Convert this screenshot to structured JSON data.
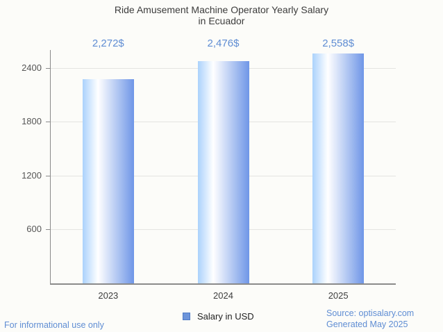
{
  "title": {
    "line1": "Ride Amusement Machine Operator Yearly Salary",
    "line2": "in Ecuador"
  },
  "chart_data": {
    "type": "bar",
    "title": "Ride Amusement Machine Operator Yearly Salary in Ecuador",
    "categories": [
      "2023",
      "2024",
      "2025"
    ],
    "series": [
      {
        "name": "Salary in USD",
        "values": [
          2272,
          2476,
          2558
        ]
      }
    ],
    "value_labels": [
      "2,272$",
      "2,476$",
      "2,558$"
    ],
    "xlabel": "",
    "ylabel": "",
    "yticks": [
      600,
      1200,
      1800,
      2400
    ],
    "ylim": [
      0,
      2600
    ],
    "grid": true,
    "legend_position": "bottom"
  },
  "legend": {
    "label": "Salary in USD",
    "marker_color": "#6d95da"
  },
  "footer": {
    "left": "For informational use only",
    "source": "Source: optisalary.com",
    "generated": "Generated May 2025"
  },
  "colors": {
    "background": "#fcfcf9",
    "accent_text": "#5f8dd3",
    "title_text": "#3c3c3c",
    "bar_gradient_light": "#abd2fc",
    "bar_gradient_dark": "#6f96e7",
    "gridline": "#e4e4e1",
    "axis": "#8a8a8a"
  }
}
